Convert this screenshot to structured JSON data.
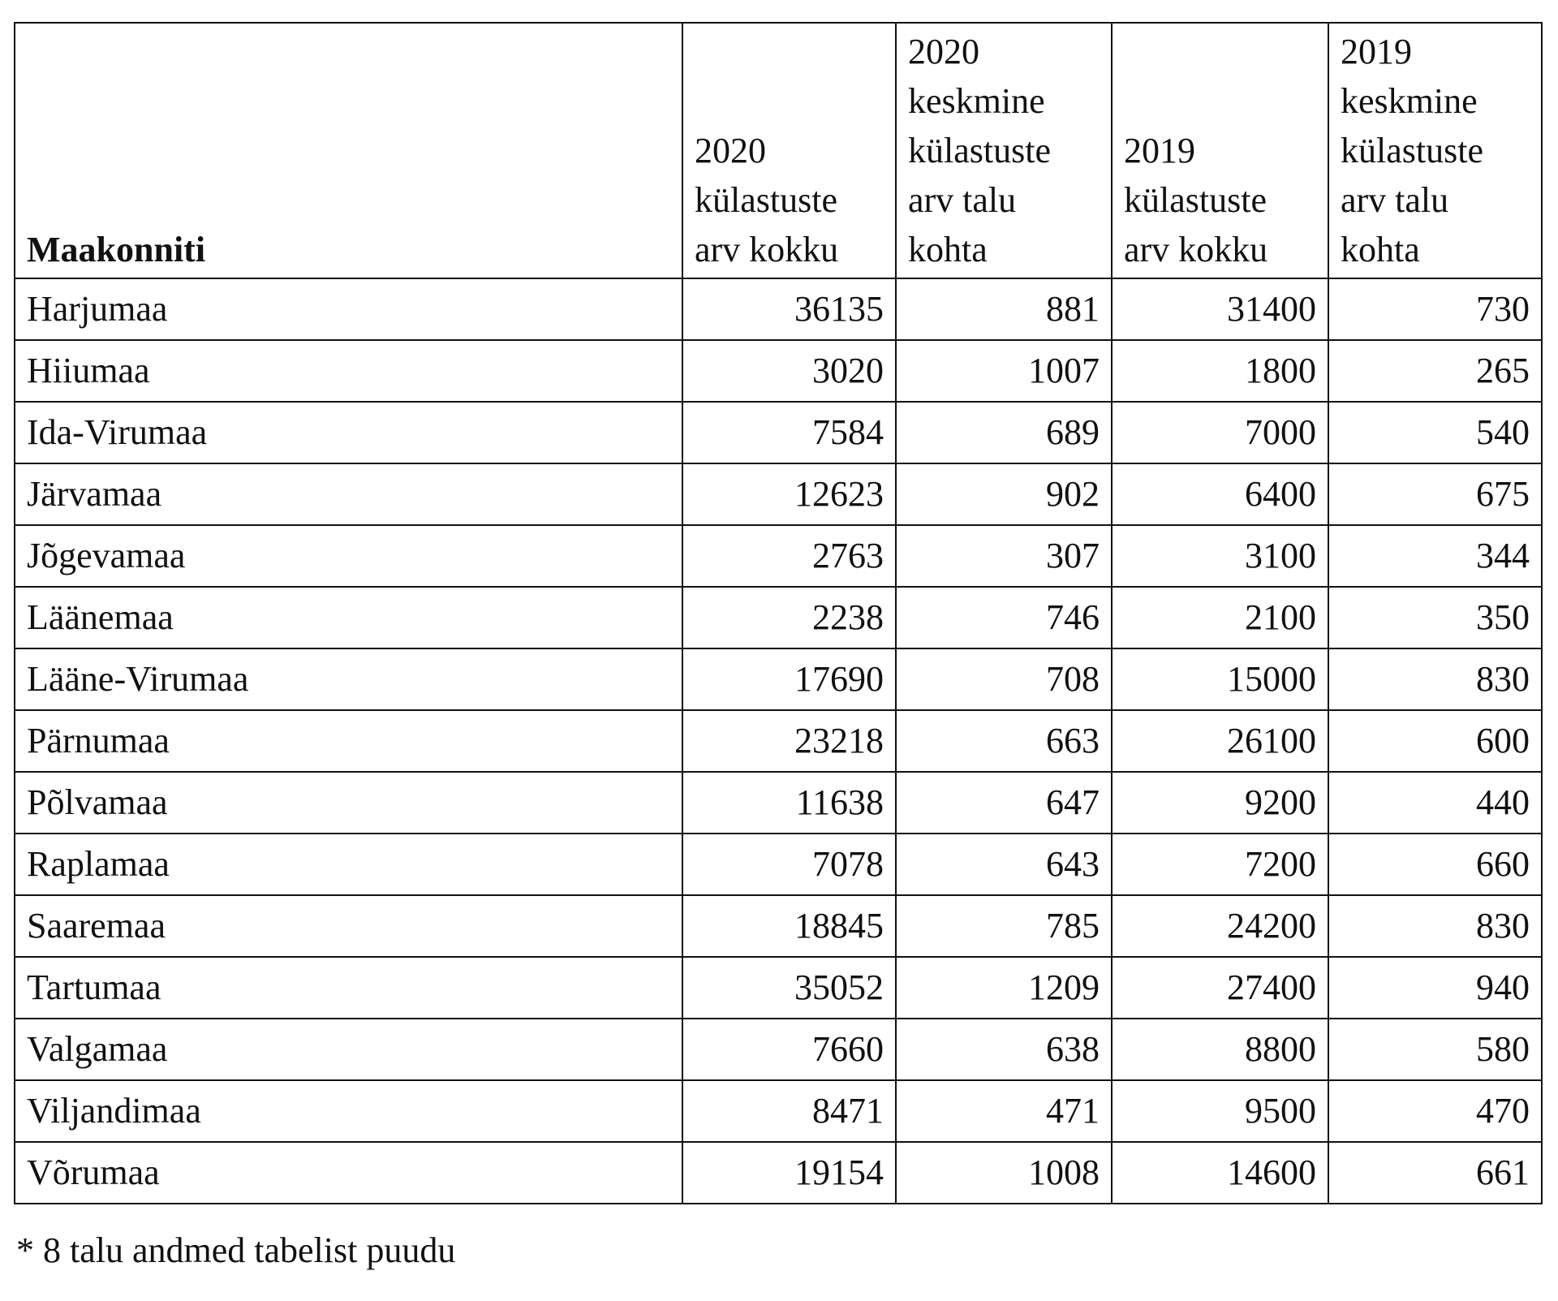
{
  "table": {
    "header": [
      "Maakonniti",
      "2020 külastuste arv kokku",
      "2020 keskmine külastuste arv talu kohta",
      "2019 külastuste arv kokku",
      "2019 keskmine külastuste arv talu kohta"
    ],
    "rows": [
      [
        "Harjumaa",
        36135,
        881,
        31400,
        730
      ],
      [
        "Hiiumaa",
        3020,
        1007,
        1800,
        265
      ],
      [
        "Ida-Virumaa",
        7584,
        689,
        7000,
        540
      ],
      [
        "Järvamaa",
        12623,
        902,
        6400,
        675
      ],
      [
        "Jõgevamaa",
        2763,
        307,
        3100,
        344
      ],
      [
        "Läänemaa",
        2238,
        746,
        2100,
        350
      ],
      [
        "Lääne-Virumaa",
        17690,
        708,
        15000,
        830
      ],
      [
        "Pärnumaa",
        23218,
        663,
        26100,
        600
      ],
      [
        "Põlvamaa",
        11638,
        647,
        9200,
        440
      ],
      [
        "Raplamaa",
        7078,
        643,
        7200,
        660
      ],
      [
        "Saaremaa",
        18845,
        785,
        24200,
        830
      ],
      [
        "Tartumaa",
        35052,
        1209,
        27400,
        940
      ],
      [
        "Valgamaa",
        7660,
        638,
        8800,
        580
      ],
      [
        "Viljandimaa",
        8471,
        471,
        9500,
        470
      ],
      [
        "Võrumaa",
        19154,
        1008,
        14600,
        661
      ]
    ]
  },
  "footnote": "* 8 talu andmed tabelist puudu"
}
